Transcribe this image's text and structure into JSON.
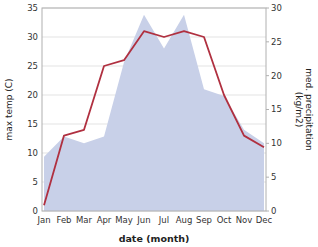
{
  "chart_data": {
    "type": "line",
    "categories": [
      "Jan",
      "Feb",
      "Mar",
      "Apr",
      "May",
      "Jun",
      "Jul",
      "Aug",
      "Sep",
      "Oct",
      "Nov",
      "Dec"
    ],
    "series": [
      {
        "type": "area",
        "color": "#c8d0e8",
        "axis": "y2",
        "values": [
          8,
          11,
          10,
          11,
          22,
          29,
          24,
          29,
          18,
          17,
          12,
          10
        ]
      },
      {
        "type": "line",
        "color": "#b03040",
        "values": [
          1,
          13,
          14,
          25,
          26,
          31,
          30,
          31,
          30,
          20,
          13,
          11
        ]
      }
    ],
    "x_label": "date (month)",
    "y_label": "max temp (C)",
    "y2_label": "med. precipitation\n(kg/m2)",
    "ylim": [
      0,
      35
    ],
    "yticks": [
      0,
      5,
      10,
      15,
      20,
      25,
      30,
      35
    ],
    "y2lim": [
      0,
      30
    ],
    "y2ticks": [
      0,
      5,
      10,
      15,
      20,
      25,
      30
    ],
    "grid": true
  }
}
